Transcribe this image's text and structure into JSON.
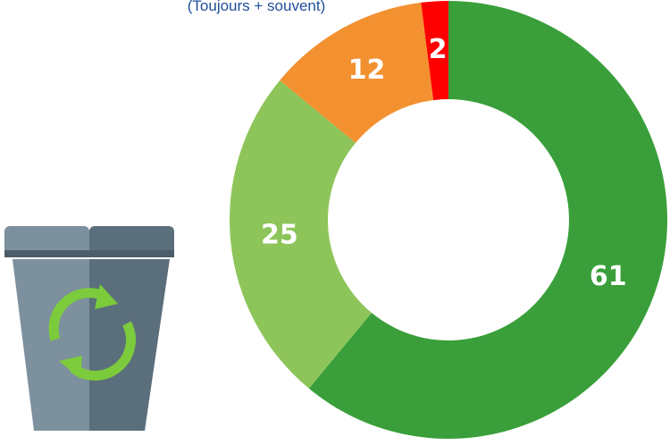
{
  "chart_data": {
    "type": "donut",
    "subtitle": "(Toujours + souvent)",
    "values": [
      61,
      25,
      12,
      2
    ],
    "colors": [
      "#3a9f3a",
      "#8dc55a",
      "#f39130",
      "#ff0000"
    ]
  }
}
